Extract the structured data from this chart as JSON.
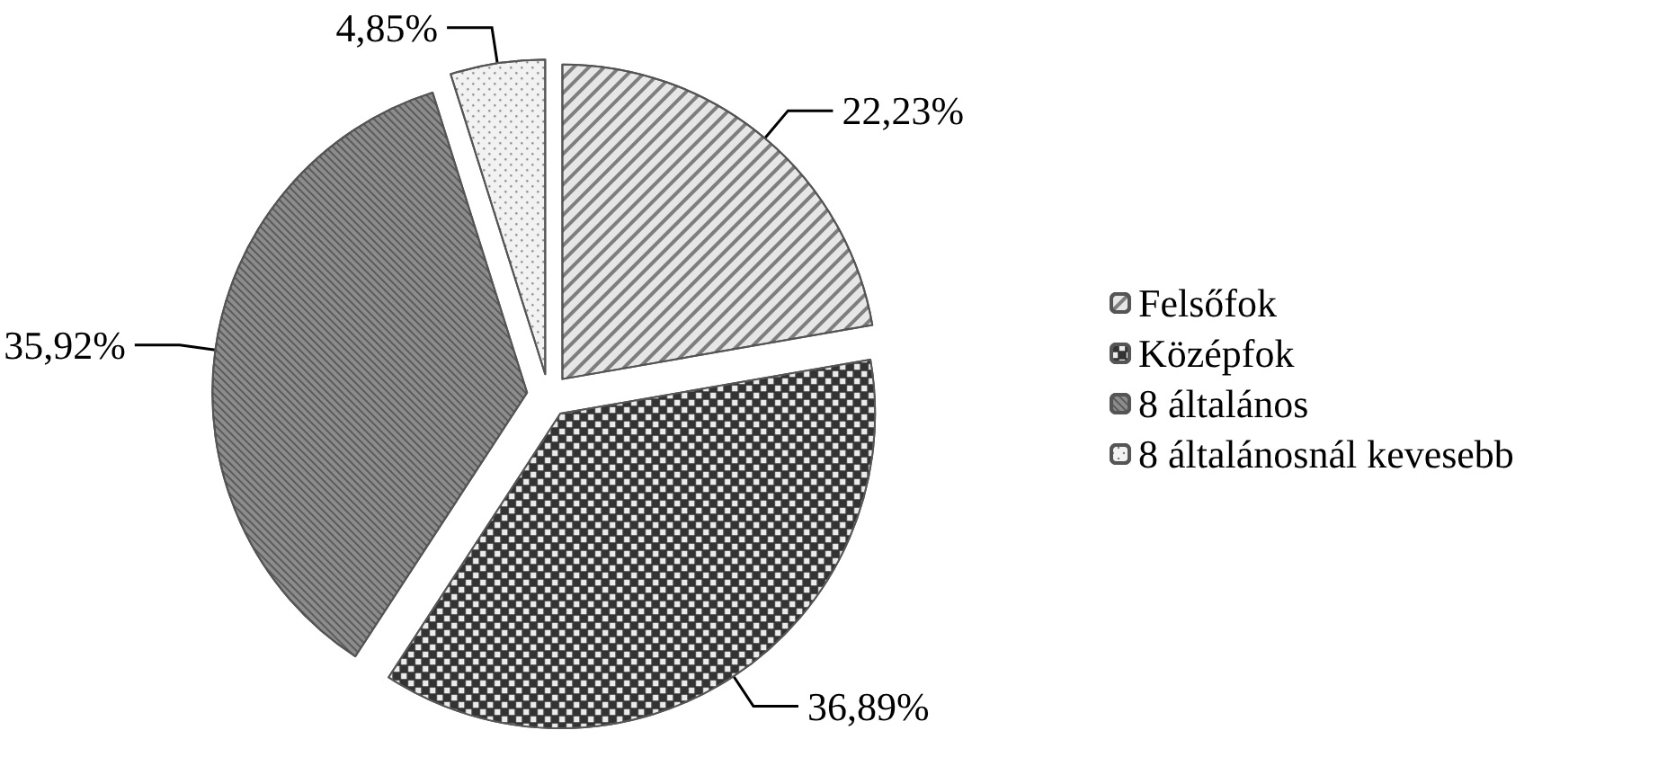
{
  "chart_data": {
    "type": "pie",
    "categories": [
      "Felsőfok",
      "Középfok",
      "8 általános",
      "8 általánosnál kevesebb"
    ],
    "values": [
      22.23,
      36.89,
      35.92,
      4.85
    ],
    "value_labels": [
      "22,23%",
      "36,89%",
      "35,92%",
      "4,85%"
    ],
    "colors": [
      "#e6e6e6",
      "#333333",
      "#8c8c8c",
      "#f2f2f2"
    ],
    "legend": "right"
  }
}
